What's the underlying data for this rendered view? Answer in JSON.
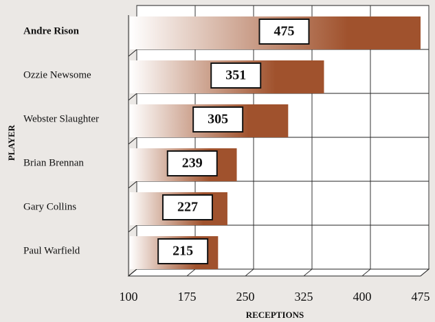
{
  "chart_data": {
    "type": "barh",
    "categories": [
      "Andre Rison",
      "Ozzie Newsome",
      "Webster Slaughter",
      "Brian Brennan",
      "Gary Collins",
      "Paul Warfield"
    ],
    "values": [
      475,
      351,
      305,
      239,
      227,
      215
    ],
    "color": "#a0522d",
    "xlabel": "RECEPTIONS",
    "ylabel": "PLAYER",
    "xlim": [
      100,
      475
    ],
    "xticks": [
      100,
      175,
      250,
      325,
      400,
      475
    ],
    "grid": true
  }
}
